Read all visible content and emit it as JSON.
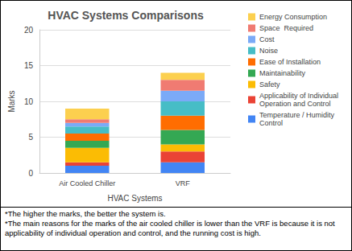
{
  "chart_data": {
    "type": "bar",
    "title": "HVAC Systems Comparisons",
    "x_label": "HVAC Systems",
    "y_label": "Marks",
    "categories": [
      "Air Cooled Chiller",
      "VRF"
    ],
    "series": [
      {
        "name": "Temperature / Humidity Control",
        "color": "#4285f4",
        "values": [
          1,
          1.5
        ]
      },
      {
        "name": "Applicability of Individual Operation and Control",
        "color": "#ea4335",
        "values": [
          0.5,
          1.5
        ]
      },
      {
        "name": "Safety",
        "color": "#fbbc04",
        "values": [
          2,
          1
        ]
      },
      {
        "name": "Maintainability",
        "color": "#34a853",
        "values": [
          1,
          2
        ]
      },
      {
        "name": "Ease of Installation",
        "color": "#ff6d01",
        "values": [
          1,
          2
        ]
      },
      {
        "name": "Noise",
        "color": "#46bdc6",
        "values": [
          1,
          2
        ]
      },
      {
        "name": "Cost",
        "color": "#7baaf7",
        "values": [
          0.5,
          1.5
        ]
      },
      {
        "name": "Space  Required",
        "color": "#f07b72",
        "values": [
          0.5,
          1.5
        ]
      },
      {
        "name": "Energy Consumption",
        "color": "#fcd04f",
        "values": [
          1.5,
          1
        ]
      }
    ],
    "stacked": true,
    "ylim": [
      0,
      20
    ],
    "yticks": [
      0,
      5,
      10,
      15,
      20
    ],
    "grid": true,
    "legend": "right",
    "annotations": [
      "*The higher the marks, the better the system is.",
      "*The main reasons for the marks of the air cooled chiller is lower than the VRF is because it is not applicability of individual operation and control, and the running cost is high."
    ]
  }
}
